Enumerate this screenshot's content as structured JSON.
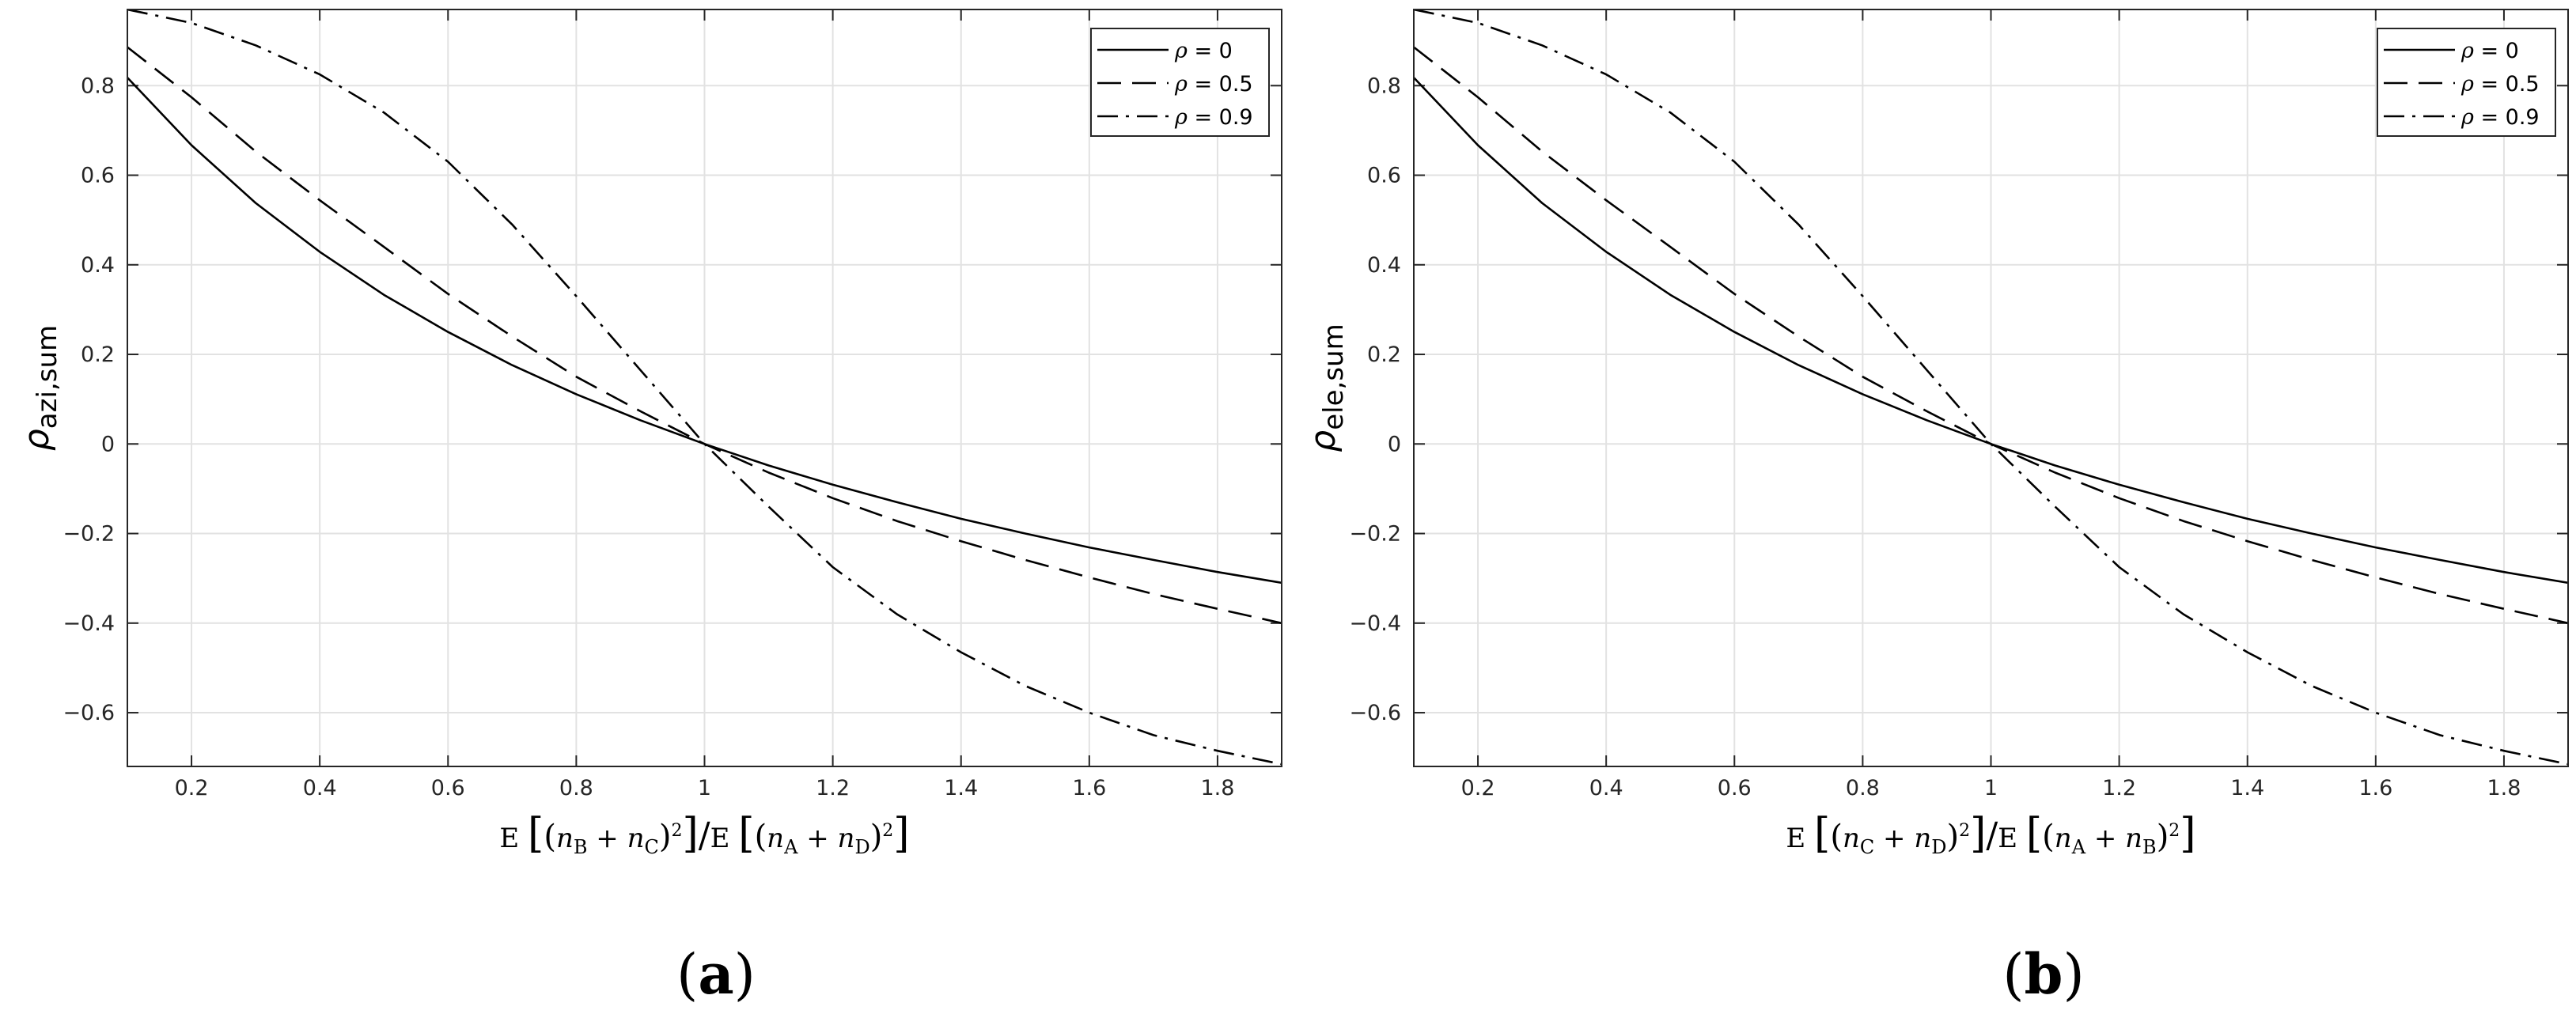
{
  "chart_data": [
    {
      "type": "line",
      "xlabel": "E[(nB + nC)²]/E[(nA + nD)²]",
      "ylabel": "ρazi,sum",
      "panel_label": "(a)",
      "xlim": [
        0.1,
        1.9
      ],
      "ylim": [
        -0.72,
        0.97
      ],
      "xticks": [
        0.2,
        0.4,
        0.6,
        0.8,
        1,
        1.2,
        1.4,
        1.6,
        1.8
      ],
      "yticks": [
        -0.6,
        -0.4,
        -0.2,
        0,
        0.2,
        0.4,
        0.6,
        0.8
      ],
      "grid": true,
      "legend_position": "top-right",
      "x": [
        0.1,
        0.2,
        0.3,
        0.4,
        0.5,
        0.6,
        0.7,
        0.8,
        0.9,
        1.0,
        1.1,
        1.2,
        1.3,
        1.4,
        1.5,
        1.6,
        1.7,
        1.8,
        1.9
      ],
      "series": [
        {
          "name": "ρ = 0",
          "dash": "solid",
          "values": [
            0.818,
            0.667,
            0.538,
            0.429,
            0.333,
            0.25,
            0.176,
            0.111,
            0.053,
            0.0,
            -0.048,
            -0.091,
            -0.13,
            -0.167,
            -0.2,
            -0.231,
            -0.259,
            -0.286,
            -0.31
          ]
        },
        {
          "name": "ρ = 0.5",
          "dash": "dashed",
          "values": [
            0.886,
            0.774,
            0.653,
            0.544,
            0.44,
            0.335,
            0.24,
            0.15,
            0.073,
            0.0,
            -0.064,
            -0.121,
            -0.172,
            -0.217,
            -0.259,
            -0.298,
            -0.335,
            -0.368,
            -0.4
          ]
        },
        {
          "name": "ρ = 0.9",
          "dash": "dashdot",
          "values": [
            0.97,
            0.94,
            0.89,
            0.825,
            0.74,
            0.63,
            0.49,
            0.33,
            0.165,
            0.0,
            -0.14,
            -0.275,
            -0.38,
            -0.465,
            -0.54,
            -0.6,
            -0.65,
            -0.685,
            -0.715
          ]
        }
      ]
    },
    {
      "type": "line",
      "xlabel": "E[(nC + nD)²]/E[(nA + nB)²]",
      "ylabel": "ρele,sum",
      "panel_label": "(b)",
      "xlim": [
        0.1,
        1.9
      ],
      "ylim": [
        -0.72,
        0.97
      ],
      "xticks": [
        0.2,
        0.4,
        0.6,
        0.8,
        1,
        1.2,
        1.4,
        1.6,
        1.8
      ],
      "yticks": [
        -0.6,
        -0.4,
        -0.2,
        0,
        0.2,
        0.4,
        0.6,
        0.8
      ],
      "grid": true,
      "legend_position": "top-right",
      "x": [
        0.1,
        0.2,
        0.3,
        0.4,
        0.5,
        0.6,
        0.7,
        0.8,
        0.9,
        1.0,
        1.1,
        1.2,
        1.3,
        1.4,
        1.5,
        1.6,
        1.7,
        1.8,
        1.9
      ],
      "series": [
        {
          "name": "ρ = 0",
          "dash": "solid",
          "values": [
            0.818,
            0.667,
            0.538,
            0.429,
            0.333,
            0.25,
            0.176,
            0.111,
            0.053,
            0.0,
            -0.048,
            -0.091,
            -0.13,
            -0.167,
            -0.2,
            -0.231,
            -0.259,
            -0.286,
            -0.31
          ]
        },
        {
          "name": "ρ = 0.5",
          "dash": "dashed",
          "values": [
            0.886,
            0.774,
            0.653,
            0.544,
            0.44,
            0.335,
            0.24,
            0.15,
            0.073,
            0.0,
            -0.064,
            -0.121,
            -0.172,
            -0.217,
            -0.259,
            -0.298,
            -0.335,
            -0.368,
            -0.4
          ]
        },
        {
          "name": "ρ = 0.9",
          "dash": "dashdot",
          "values": [
            0.97,
            0.94,
            0.89,
            0.825,
            0.74,
            0.63,
            0.49,
            0.33,
            0.165,
            0.0,
            -0.14,
            -0.275,
            -0.38,
            -0.465,
            -0.54,
            -0.6,
            -0.65,
            -0.685,
            -0.715
          ]
        }
      ]
    }
  ]
}
